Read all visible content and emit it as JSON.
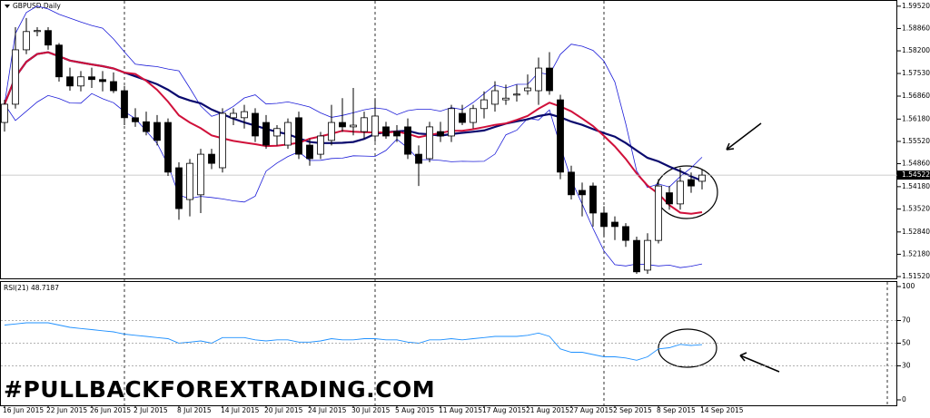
{
  "chart_data": {
    "type": "candlestick",
    "title": "GBPUSD,Daily",
    "watermark": "#PULLBACKFOREXTRADING.COM",
    "categories": [
      "16 Jun 2015",
      null,
      null,
      null,
      "22 Jun 2015",
      null,
      null,
      null,
      "26 Jun 2015",
      null,
      null,
      null,
      "2 Jul 2015",
      null,
      null,
      null,
      "8 Jul 2015",
      null,
      null,
      null,
      "14 Jul 2015",
      null,
      null,
      null,
      "20 Jul 2015",
      null,
      null,
      null,
      "24 Jul 2015",
      null,
      null,
      null,
      "30 Jul 2015",
      null,
      null,
      null,
      "5 Aug 2015",
      null,
      null,
      null,
      "11 Aug 2015",
      null,
      null,
      null,
      "17 Aug 2015",
      null,
      null,
      null,
      "21 Aug 2015",
      null,
      null,
      null,
      "27 Aug 2015",
      null,
      null,
      null,
      "2 Sep 2015",
      null,
      null,
      null,
      "8 Sep 2015",
      null,
      null,
      null,
      "14 Sep 2015"
    ],
    "open": [
      1.5608,
      1.5662,
      1.5823,
      1.5877,
      1.588,
      1.5837,
      1.5743,
      1.5716,
      1.5743,
      1.5735,
      1.5729,
      1.5702,
      1.5622,
      1.561,
      1.5608,
      1.5608,
      1.5474,
      1.538,
      1.5394,
      1.5514,
      1.5474,
      1.5622,
      1.5622,
      1.5635,
      1.5608,
      1.5568,
      1.5541,
      1.5622,
      1.5541,
      1.5514,
      1.5555,
      1.5608,
      1.5595,
      1.5581,
      1.5568,
      1.5595,
      1.5581,
      1.5595,
      1.5514,
      1.5501,
      1.5581,
      1.5568,
      1.5635,
      1.5608,
      1.5649,
      1.5662,
      1.5675,
      1.5689,
      1.5702,
      1.5702,
      1.5769,
      1.5675,
      1.5461,
      1.5407,
      1.542,
      1.534,
      1.5313,
      1.53,
      1.5259,
      1.5171,
      1.5259,
      1.54,
      1.5367,
      1.5439,
      1.5434
    ],
    "high": [
      1.5675,
      1.589,
      1.5917,
      1.589,
      1.589,
      1.5843,
      1.577,
      1.576,
      1.577,
      1.576,
      1.5756,
      1.5716,
      1.565,
      1.564,
      1.563,
      1.562,
      1.549,
      1.55,
      1.553,
      1.553,
      1.565,
      1.565,
      1.566,
      1.565,
      1.563,
      1.56,
      1.562,
      1.564,
      1.556,
      1.558,
      1.566,
      1.568,
      1.571,
      1.564,
      1.568,
      1.561,
      1.56,
      1.562,
      1.554,
      1.561,
      1.561,
      1.566,
      1.566,
      1.566,
      1.57,
      1.573,
      1.572,
      1.572,
      1.575,
      1.58,
      1.5816,
      1.569,
      1.548,
      1.543,
      1.543,
      1.536,
      1.533,
      1.531,
      1.527,
      1.528,
      1.544,
      1.542,
      1.5474,
      1.546,
      1.547
    ],
    "low": [
      1.5581,
      1.5649,
      1.581,
      1.5863,
      1.5823,
      1.5729,
      1.5702,
      1.57,
      1.571,
      1.57,
      1.5695,
      1.56,
      1.5595,
      1.557,
      1.554,
      1.545,
      1.532,
      1.533,
      1.534,
      1.547,
      1.546,
      1.56,
      1.559,
      1.555,
      1.553,
      1.554,
      1.553,
      1.55,
      1.548,
      1.55,
      1.554,
      1.558,
      1.557,
      1.556,
      1.555,
      1.556,
      1.555,
      1.55,
      1.542,
      1.549,
      1.555,
      1.555,
      1.56,
      1.559,
      1.562,
      1.564,
      1.566,
      1.567,
      1.569,
      1.566,
      1.569,
      1.544,
      1.538,
      1.533,
      1.53,
      1.527,
      1.526,
      1.524,
      1.516,
      1.516,
      1.525,
      1.535,
      1.535,
      1.54,
      1.541
    ],
    "close": [
      1.5662,
      1.5823,
      1.5877,
      1.588,
      1.5837,
      1.5743,
      1.5716,
      1.5743,
      1.5735,
      1.5729,
      1.5702,
      1.5622,
      1.561,
      1.5581,
      1.5555,
      1.5461,
      1.5353,
      1.5487,
      1.5514,
      1.5487,
      1.5635,
      1.5635,
      1.564,
      1.5568,
      1.5541,
      1.559,
      1.5608,
      1.5514,
      1.5501,
      1.5568,
      1.5608,
      1.5595,
      1.56,
      1.5622,
      1.5627,
      1.5568,
      1.5568,
      1.5514,
      1.5487,
      1.5595,
      1.5568,
      1.5649,
      1.5608,
      1.5649,
      1.5675,
      1.5702,
      1.568,
      1.5692,
      1.571,
      1.5769,
      1.5702,
      1.5461,
      1.5394,
      1.5394,
      1.534,
      1.53,
      1.53,
      1.5259,
      1.5166,
      1.5259,
      1.542,
      1.5367,
      1.5434,
      1.542,
      1.54522
    ],
    "ylim": [
      1.5144,
      1.5965
    ],
    "yticks": [
      {
        "value": 1.5952,
        "label": "1.59520"
      },
      {
        "value": 1.5886,
        "label": "1.58860"
      },
      {
        "value": 1.582,
        "label": "1.58200"
      },
      {
        "value": 1.5753,
        "label": "1.57530"
      },
      {
        "value": 1.5686,
        "label": "1.56860"
      },
      {
        "value": 1.5618,
        "label": "1.56180"
      },
      {
        "value": 1.5552,
        "label": "1.55520"
      },
      {
        "value": 1.5486,
        "label": "1.54860"
      },
      {
        "value": 1.5418,
        "label": "1.54180"
      },
      {
        "value": 1.5352,
        "label": "1.53520"
      },
      {
        "value": 1.5284,
        "label": "1.52840"
      },
      {
        "value": 1.5218,
        "label": "1.52180"
      },
      {
        "value": 1.5152,
        "label": "1.51520"
      }
    ],
    "series": [
      {
        "name": "RSI(21) 48.7187",
        "color": "#1e90ff",
        "axis": "y2",
        "values": [
          66,
          67,
          68,
          68,
          68,
          66,
          64,
          63,
          62,
          61,
          60,
          58,
          57,
          56,
          55,
          54,
          50,
          51,
          52,
          50,
          55,
          55,
          55,
          53,
          52,
          53,
          53,
          51,
          51,
          52,
          54,
          53,
          53,
          54,
          54,
          53,
          53,
          51,
          50,
          53,
          53,
          54,
          53,
          54,
          55,
          56,
          56,
          56,
          57,
          59,
          56,
          45,
          42,
          42,
          40,
          38,
          38,
          37,
          35,
          38,
          45,
          46,
          49,
          48,
          48.7187
        ]
      }
    ],
    "y2lim": [
      -4.8,
      103.2
    ],
    "y2ticks": [
      100,
      70,
      50,
      30,
      0
    ]
  }
}
